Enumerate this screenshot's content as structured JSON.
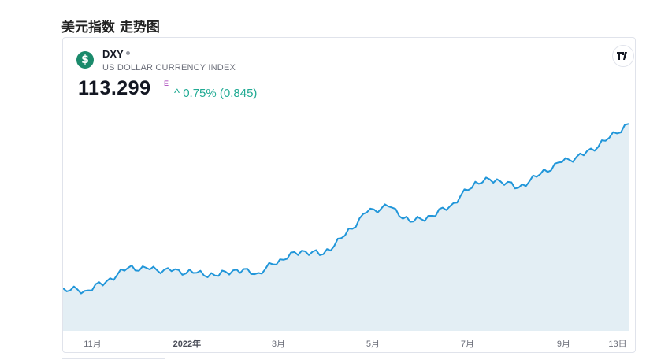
{
  "page": {
    "title": "美元指数 走势图"
  },
  "symbol": {
    "logo_glyph": "$",
    "ticker": "DXY",
    "description": "US DOLLAR CURRENCY INDEX",
    "price": "113.299",
    "price_flag": "E",
    "change_text": "^ 0.75% (0.845)",
    "colors": {
      "up": "#22ab94",
      "line": "#2196d9",
      "fill": "#e3eef4",
      "logo_bg": "#1a8a6b"
    }
  },
  "brand": {
    "logo_icon": "tradingview-logo-icon"
  },
  "chart_data": {
    "type": "area",
    "title": "",
    "xlabel": "",
    "ylabel": "",
    "ylim": [
      89,
      116
    ],
    "grid": false,
    "x_tick_labels": [
      "11月",
      "2022年",
      "3月",
      "5月",
      "7月",
      "9月",
      "13日"
    ],
    "x": [
      "2021-10-13",
      "2021-10-27",
      "2021-11-10",
      "2021-11-24",
      "2021-12-08",
      "2021-12-22",
      "2022-01-05",
      "2022-01-19",
      "2022-02-02",
      "2022-02-16",
      "2022-03-02",
      "2022-03-16",
      "2022-03-30",
      "2022-04-13",
      "2022-04-27",
      "2022-05-11",
      "2022-05-25",
      "2022-06-08",
      "2022-06-22",
      "2022-07-06",
      "2022-07-20",
      "2022-08-03",
      "2022-08-17",
      "2022-08-31",
      "2022-09-14",
      "2022-09-28",
      "2022-10-13"
    ],
    "series": [
      {
        "values": [
          94.0,
          93.7,
          94.8,
          96.4,
          96.2,
          96.0,
          95.8,
          95.5,
          96.2,
          95.8,
          97.4,
          98.4,
          98.0,
          100.2,
          102.9,
          103.6,
          101.8,
          102.5,
          104.0,
          106.5,
          106.8,
          105.8,
          107.4,
          108.8,
          109.6,
          111.3,
          113.3
        ]
      }
    ]
  }
}
